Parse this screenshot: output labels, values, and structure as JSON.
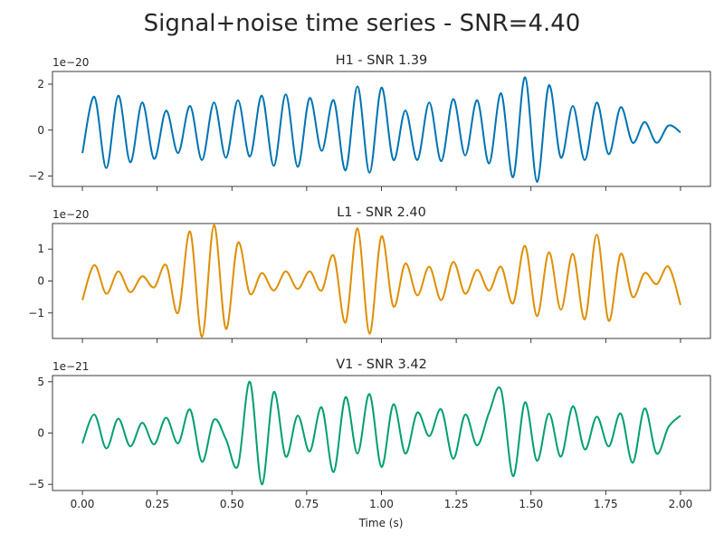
{
  "figure": {
    "title": "Signal+noise time series - SNR=4.40",
    "xlabel": "Time (s)"
  },
  "chart_data": [
    {
      "type": "line",
      "title": "H1 - SNR 1.39",
      "offset_label": "1e−20",
      "color": "#0173b2",
      "xlim": [
        -0.1,
        2.1
      ],
      "ylim": [
        -2.45,
        2.55
      ],
      "yticks": [
        -2,
        0,
        2
      ],
      "ytick_labels": [
        "−2",
        "0",
        "2"
      ],
      "xticks": [
        0.0,
        0.25,
        0.5,
        0.75,
        1.0,
        1.25,
        1.5,
        1.75,
        2.0
      ],
      "xtick_labels": [],
      "series": [
        {
          "x": [
            0.0,
            0.04,
            0.08,
            0.12,
            0.16,
            0.2,
            0.24,
            0.28,
            0.32,
            0.36,
            0.4,
            0.44,
            0.48,
            0.52,
            0.56,
            0.6,
            0.64,
            0.68,
            0.72,
            0.76,
            0.8,
            0.84,
            0.88,
            0.92,
            0.96,
            1.0,
            1.04,
            1.08,
            1.12,
            1.16,
            1.2,
            1.24,
            1.28,
            1.32,
            1.36,
            1.4,
            1.44,
            1.48,
            1.52,
            1.56,
            1.6,
            1.64,
            1.68,
            1.72,
            1.76,
            1.8,
            1.84,
            1.88,
            1.92,
            1.96,
            2.0
          ],
          "y": [
            -1.0,
            1.45,
            -1.65,
            1.5,
            -1.4,
            1.2,
            -1.25,
            0.85,
            -1.0,
            1.05,
            -1.3,
            1.2,
            -1.2,
            1.3,
            -1.15,
            1.5,
            -1.55,
            1.55,
            -1.6,
            1.4,
            -0.9,
            1.3,
            -1.75,
            1.9,
            -1.85,
            1.85,
            -1.3,
            0.85,
            -1.3,
            1.2,
            -1.35,
            1.35,
            -1.1,
            1.3,
            -1.45,
            1.6,
            -2.05,
            2.3,
            -2.25,
            1.95,
            -1.2,
            1.05,
            -1.3,
            1.2,
            -1.05,
            1.0,
            -0.55,
            0.35,
            -0.55,
            0.2,
            -0.1
          ]
        }
      ]
    },
    {
      "type": "line",
      "title": "L1 - SNR 2.40",
      "offset_label": "1e−20",
      "color": "#de8f05",
      "xlim": [
        -0.1,
        2.1
      ],
      "ylim": [
        -1.8,
        1.8
      ],
      "yticks": [
        -1,
        0,
        1
      ],
      "ytick_labels": [
        "−1",
        "0",
        "1"
      ],
      "xticks": [
        0.0,
        0.25,
        0.5,
        0.75,
        1.0,
        1.25,
        1.5,
        1.75,
        2.0
      ],
      "xtick_labels": [],
      "series": [
        {
          "x": [
            0.0,
            0.04,
            0.08,
            0.12,
            0.16,
            0.2,
            0.24,
            0.28,
            0.32,
            0.36,
            0.4,
            0.44,
            0.48,
            0.52,
            0.56,
            0.6,
            0.64,
            0.68,
            0.72,
            0.76,
            0.8,
            0.84,
            0.88,
            0.92,
            0.96,
            1.0,
            1.04,
            1.08,
            1.12,
            1.16,
            1.2,
            1.24,
            1.28,
            1.32,
            1.36,
            1.4,
            1.44,
            1.48,
            1.52,
            1.56,
            1.6,
            1.64,
            1.68,
            1.72,
            1.76,
            1.8,
            1.84,
            1.88,
            1.92,
            1.96,
            2.0
          ],
          "y": [
            -0.6,
            0.5,
            -0.4,
            0.3,
            -0.35,
            0.15,
            -0.2,
            0.5,
            -1.0,
            1.55,
            -1.75,
            1.75,
            -1.5,
            1.2,
            -0.4,
            0.25,
            -0.3,
            0.3,
            -0.25,
            0.3,
            -0.3,
            0.8,
            -1.3,
            1.65,
            -1.65,
            1.4,
            -0.8,
            0.55,
            -0.45,
            0.45,
            -0.6,
            0.6,
            -0.4,
            0.35,
            -0.3,
            0.45,
            -0.7,
            1.1,
            -1.1,
            0.9,
            -0.9,
            0.85,
            -1.2,
            1.45,
            -1.25,
            0.85,
            -0.5,
            0.25,
            -0.1,
            0.45,
            -0.75
          ]
        }
      ]
    },
    {
      "type": "line",
      "title": "V1 - SNR 3.42",
      "offset_label": "1e−21",
      "color": "#029e73",
      "xlim": [
        -0.1,
        2.1
      ],
      "ylim": [
        -5.6,
        5.6
      ],
      "yticks": [
        -5,
        0,
        5
      ],
      "ytick_labels": [
        "−5",
        "0",
        "5"
      ],
      "xticks": [
        0.0,
        0.25,
        0.5,
        0.75,
        1.0,
        1.25,
        1.5,
        1.75,
        2.0
      ],
      "xtick_labels": [
        "0.00",
        "0.25",
        "0.50",
        "0.75",
        "1.00",
        "1.25",
        "1.50",
        "1.75",
        "2.00"
      ],
      "series": [
        {
          "x": [
            0.0,
            0.04,
            0.08,
            0.12,
            0.16,
            0.2,
            0.24,
            0.28,
            0.32,
            0.36,
            0.4,
            0.44,
            0.48,
            0.52,
            0.56,
            0.6,
            0.64,
            0.68,
            0.72,
            0.76,
            0.8,
            0.84,
            0.88,
            0.92,
            0.96,
            1.0,
            1.04,
            1.08,
            1.12,
            1.16,
            1.2,
            1.24,
            1.28,
            1.32,
            1.36,
            1.4,
            1.44,
            1.48,
            1.52,
            1.56,
            1.6,
            1.64,
            1.68,
            1.72,
            1.76,
            1.8,
            1.84,
            1.88,
            1.92,
            1.96,
            2.0
          ],
          "y": [
            -1.0,
            1.8,
            -1.5,
            1.4,
            -1.3,
            1.0,
            -1.1,
            1.5,
            -1.0,
            2.3,
            -2.8,
            1.3,
            -0.6,
            -3.2,
            5.0,
            -5.0,
            4.0,
            -2.3,
            1.7,
            -1.8,
            2.5,
            -3.8,
            3.5,
            -2.0,
            3.8,
            -3.3,
            2.8,
            -2.0,
            2.0,
            -0.3,
            2.3,
            -2.5,
            1.8,
            -1.2,
            2.0,
            4.2,
            -4.2,
            3.0,
            -2.7,
            1.9,
            -2.3,
            2.6,
            -1.6,
            1.6,
            -1.3,
            1.9,
            -2.9,
            2.4,
            -2.0,
            0.6,
            1.7
          ]
        }
      ]
    }
  ]
}
